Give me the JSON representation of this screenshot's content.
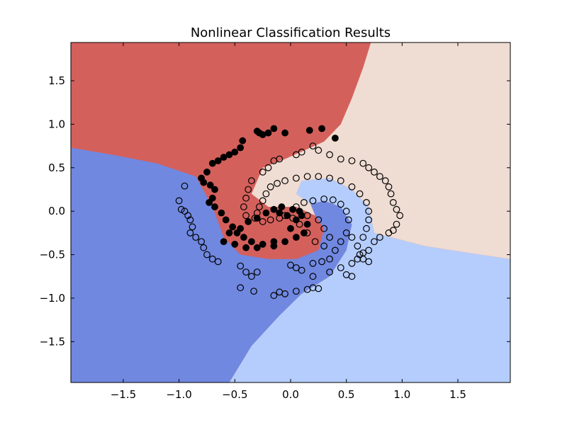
{
  "chart_data": {
    "type": "scatter",
    "title": "Nonlinear Classification Results",
    "xlabel": "",
    "ylabel": "",
    "xlim": [
      -1.97,
      1.97
    ],
    "ylim": [
      -1.97,
      1.94
    ],
    "xticks": [
      -1.5,
      -1.0,
      -0.5,
      0.0,
      0.5,
      1.0,
      1.5
    ],
    "xtick_labels": [
      "−1.5",
      "−1.0",
      "−0.5",
      "0.0",
      "0.5",
      "1.0",
      "1.5"
    ],
    "yticks": [
      1.5,
      1.0,
      0.5,
      0.0,
      -0.5,
      -1.0,
      -1.5
    ],
    "ytick_labels": [
      "1.5",
      "1.0",
      "0.5",
      "0.0",
      "−0.5",
      "−1.0",
      "−1.5"
    ],
    "grid": false,
    "legend": "none",
    "colors": {
      "region_dark_blue": "#7088e0",
      "region_light_blue": "#b5cdfd",
      "region_beige": "#efdcd2",
      "region_red": "#d4605c",
      "filled_point": "#000000",
      "open_point_edge": "#000000"
    },
    "regions": [
      {
        "name": "dark-blue-region",
        "color_key": "region_dark_blue",
        "polygon": [
          [
            -1.97,
            0.73
          ],
          [
            -1.6,
            0.65
          ],
          [
            -1.2,
            0.55
          ],
          [
            -0.85,
            0.4
          ],
          [
            -0.7,
            0.05
          ],
          [
            -0.6,
            -0.3
          ],
          [
            -0.45,
            -0.5
          ],
          [
            -0.2,
            -0.55
          ],
          [
            0.05,
            -0.55
          ],
          [
            0.25,
            -0.45
          ],
          [
            0.3,
            -0.2
          ],
          [
            0.22,
            -0.05
          ],
          [
            0.18,
            0.08
          ],
          [
            0.3,
            0.12
          ],
          [
            0.45,
            0.05
          ],
          [
            0.55,
            -0.15
          ],
          [
            0.5,
            -0.45
          ],
          [
            0.35,
            -0.75
          ],
          [
            0.1,
            -0.95
          ],
          [
            -0.1,
            -1.2
          ],
          [
            -0.35,
            -1.55
          ],
          [
            -0.55,
            -1.97
          ],
          [
            -1.97,
            -1.97
          ]
        ]
      },
      {
        "name": "light-blue-region",
        "color_key": "region_light_blue",
        "polygon": [
          [
            -0.55,
            -1.97
          ],
          [
            -0.35,
            -1.55
          ],
          [
            -0.1,
            -1.2
          ],
          [
            0.1,
            -0.95
          ],
          [
            0.35,
            -0.75
          ],
          [
            0.5,
            -0.45
          ],
          [
            0.55,
            -0.15
          ],
          [
            0.45,
            0.05
          ],
          [
            0.3,
            0.12
          ],
          [
            0.18,
            0.08
          ],
          [
            0.05,
            0.2
          ],
          [
            0.1,
            0.35
          ],
          [
            0.35,
            0.38
          ],
          [
            0.55,
            0.25
          ],
          [
            0.7,
            0.05
          ],
          [
            0.75,
            -0.25
          ],
          [
            1.2,
            -0.4
          ],
          [
            1.6,
            -0.48
          ],
          [
            1.97,
            -0.55
          ],
          [
            1.97,
            -1.97
          ]
        ]
      },
      {
        "name": "beige-region",
        "color_key": "region_beige",
        "polygon": [
          [
            0.72,
            1.94
          ],
          [
            1.97,
            1.94
          ],
          [
            1.97,
            -0.55
          ],
          [
            1.6,
            -0.48
          ],
          [
            1.2,
            -0.4
          ],
          [
            0.75,
            -0.25
          ],
          [
            0.7,
            0.05
          ],
          [
            0.55,
            0.25
          ],
          [
            0.35,
            0.38
          ],
          [
            0.1,
            0.35
          ],
          [
            0.05,
            0.2
          ],
          [
            0.18,
            0.08
          ],
          [
            0.22,
            -0.05
          ],
          [
            0.05,
            0.05
          ],
          [
            -0.05,
            0.05
          ],
          [
            -0.2,
            0.05
          ],
          [
            -0.35,
            0.2
          ],
          [
            -0.25,
            0.5
          ],
          [
            -0.05,
            0.6
          ],
          [
            0.3,
            0.8
          ],
          [
            0.45,
            1.0
          ],
          [
            0.55,
            1.3
          ],
          [
            0.65,
            1.65
          ]
        ]
      }
    ],
    "series": [
      {
        "marker": "filled",
        "points": [
          [
            -0.05,
            0.9
          ],
          [
            -0.15,
            0.95
          ],
          [
            -0.2,
            0.9
          ],
          [
            -0.25,
            0.88
          ],
          [
            -0.28,
            0.9
          ],
          [
            -0.3,
            0.92
          ],
          [
            0.17,
            0.93
          ],
          [
            0.28,
            0.95
          ],
          [
            0.4,
            0.84
          ],
          [
            -0.43,
            0.81
          ],
          [
            -0.45,
            0.73
          ],
          [
            -0.5,
            0.68
          ],
          [
            -0.55,
            0.65
          ],
          [
            -0.6,
            0.62
          ],
          [
            -0.65,
            0.58
          ],
          [
            -0.7,
            0.55
          ],
          [
            -0.75,
            0.45
          ],
          [
            -0.8,
            0.38
          ],
          [
            -0.78,
            0.33
          ],
          [
            -0.72,
            0.3
          ],
          [
            -0.68,
            0.25
          ],
          [
            -0.7,
            0.15
          ],
          [
            -0.73,
            0.1
          ],
          [
            -0.68,
            0.05
          ],
          [
            -0.62,
            -0.02
          ],
          [
            -0.58,
            -0.1
          ],
          [
            -0.52,
            -0.18
          ],
          [
            -0.48,
            -0.25
          ],
          [
            -0.42,
            -0.3
          ],
          [
            -0.35,
            -0.35
          ],
          [
            -0.25,
            -0.38
          ],
          [
            -0.15,
            -0.4
          ],
          [
            -0.05,
            -0.35
          ],
          [
            0.05,
            -0.3
          ],
          [
            0.12,
            -0.25
          ],
          [
            0.15,
            -0.15
          ],
          [
            0.1,
            -0.05
          ],
          [
            0.02,
            0.02
          ],
          [
            -0.08,
            0.05
          ],
          [
            -0.15,
            0.02
          ],
          [
            -0.22,
            -0.02
          ],
          [
            -0.3,
            -0.08
          ],
          [
            -0.38,
            -0.12
          ],
          [
            -0.45,
            -0.2
          ],
          [
            -0.55,
            -0.25
          ],
          [
            -0.6,
            -0.35
          ],
          [
            -0.5,
            -0.38
          ],
          [
            -0.4,
            -0.42
          ],
          [
            -0.3,
            -0.42
          ],
          [
            -0.15,
            -0.35
          ],
          [
            0.0,
            -0.2
          ],
          [
            0.05,
            -0.1
          ],
          [
            -0.03,
            -0.05
          ],
          [
            -0.1,
            -0.02
          ],
          [
            0.08,
            0.0
          ]
        ]
      },
      {
        "marker": "open",
        "points": [
          [
            -0.95,
            0.29
          ],
          [
            -1.0,
            0.12
          ],
          [
            -0.98,
            0.02
          ],
          [
            -0.95,
            0.0
          ],
          [
            -0.92,
            -0.05
          ],
          [
            -0.9,
            -0.1
          ],
          [
            -0.88,
            -0.18
          ],
          [
            -0.9,
            -0.25
          ],
          [
            -0.85,
            -0.3
          ],
          [
            -0.8,
            -0.35
          ],
          [
            -0.78,
            -0.42
          ],
          [
            -0.75,
            -0.5
          ],
          [
            -0.7,
            -0.55
          ],
          [
            -0.65,
            -0.58
          ],
          [
            -0.45,
            -0.63
          ],
          [
            -0.4,
            -0.7
          ],
          [
            -0.35,
            -0.75
          ],
          [
            -0.3,
            -0.7
          ],
          [
            -0.45,
            -0.88
          ],
          [
            -0.33,
            -0.92
          ],
          [
            -0.15,
            -0.97
          ],
          [
            -0.1,
            -0.93
          ],
          [
            -0.05,
            -0.95
          ],
          [
            0.05,
            -0.92
          ],
          [
            0.15,
            -0.9
          ],
          [
            0.2,
            -0.88
          ],
          [
            0.25,
            -0.89
          ],
          [
            0.05,
            -0.65
          ],
          [
            0.2,
            -0.6
          ],
          [
            0.28,
            -0.58
          ],
          [
            0.35,
            -0.55
          ],
          [
            0.4,
            -0.45
          ],
          [
            0.45,
            -0.35
          ],
          [
            0.5,
            -0.25
          ],
          [
            0.52,
            -0.1
          ],
          [
            0.5,
            0.0
          ],
          [
            0.45,
            0.08
          ],
          [
            0.38,
            0.13
          ],
          [
            0.3,
            0.14
          ],
          [
            0.2,
            0.12
          ],
          [
            0.12,
            0.1
          ],
          [
            0.05,
            0.05
          ],
          [
            0.15,
            -0.05
          ],
          [
            0.25,
            -0.1
          ],
          [
            0.3,
            -0.2
          ],
          [
            0.35,
            -0.3
          ],
          [
            0.3,
            -0.4
          ],
          [
            0.22,
            -0.35
          ],
          [
            0.15,
            -0.25
          ],
          [
            0.55,
            -0.3
          ],
          [
            0.6,
            -0.4
          ],
          [
            0.62,
            -0.5
          ],
          [
            0.65,
            -0.55
          ],
          [
            0.7,
            -0.58
          ],
          [
            0.5,
            -0.73
          ],
          [
            0.55,
            -0.75
          ],
          [
            0.65,
            -0.3
          ],
          [
            0.68,
            -0.2
          ],
          [
            0.7,
            -0.1
          ],
          [
            0.7,
            0.0
          ],
          [
            0.68,
            0.1
          ],
          [
            0.62,
            0.2
          ],
          [
            0.55,
            0.28
          ],
          [
            0.45,
            0.35
          ],
          [
            0.35,
            0.38
          ],
          [
            0.25,
            0.4
          ],
          [
            0.15,
            0.4
          ],
          [
            0.05,
            0.38
          ],
          [
            -0.05,
            0.35
          ],
          [
            -0.12,
            0.32
          ],
          [
            -0.18,
            0.28
          ],
          [
            -0.22,
            0.2
          ],
          [
            -0.25,
            0.12
          ],
          [
            -0.28,
            0.05
          ],
          [
            -0.3,
            -0.02
          ],
          [
            -0.32,
            -0.08
          ],
          [
            -0.25,
            -0.12
          ],
          [
            -0.18,
            -0.1
          ],
          [
            -0.1,
            -0.08
          ],
          [
            -0.05,
            -0.05
          ],
          [
            0.02,
            -0.08
          ],
          [
            0.08,
            -0.15
          ],
          [
            -0.35,
            0.35
          ],
          [
            -0.38,
            0.25
          ],
          [
            -0.4,
            0.15
          ],
          [
            -0.42,
            0.05
          ],
          [
            -0.4,
            -0.05
          ],
          [
            -0.25,
            0.45
          ],
          [
            -0.2,
            0.5
          ],
          [
            -0.15,
            0.58
          ],
          [
            -0.1,
            0.6
          ],
          [
            0.05,
            0.65
          ],
          [
            0.1,
            0.68
          ],
          [
            0.2,
            0.75
          ],
          [
            0.25,
            0.7
          ],
          [
            0.35,
            0.65
          ],
          [
            0.45,
            0.6
          ],
          [
            0.55,
            0.58
          ],
          [
            0.65,
            0.55
          ],
          [
            0.7,
            0.5
          ],
          [
            0.75,
            0.45
          ],
          [
            0.8,
            0.4
          ],
          [
            0.85,
            0.35
          ],
          [
            0.88,
            0.28
          ],
          [
            0.9,
            0.2
          ],
          [
            0.92,
            0.1
          ],
          [
            0.95,
            0.02
          ],
          [
            0.98,
            -0.05
          ],
          [
            0.95,
            -0.15
          ],
          [
            0.92,
            -0.22
          ],
          [
            0.88,
            -0.25
          ],
          [
            0.8,
            -0.3
          ],
          [
            0.75,
            -0.35
          ],
          [
            0.7,
            -0.45
          ],
          [
            0.65,
            -0.48
          ],
          [
            0.6,
            -0.55
          ],
          [
            0.55,
            -0.6
          ],
          [
            0.45,
            -0.65
          ],
          [
            0.35,
            -0.7
          ],
          [
            0.2,
            -0.75
          ],
          [
            0.1,
            -0.68
          ],
          [
            0.0,
            -0.62
          ]
        ]
      }
    ]
  }
}
